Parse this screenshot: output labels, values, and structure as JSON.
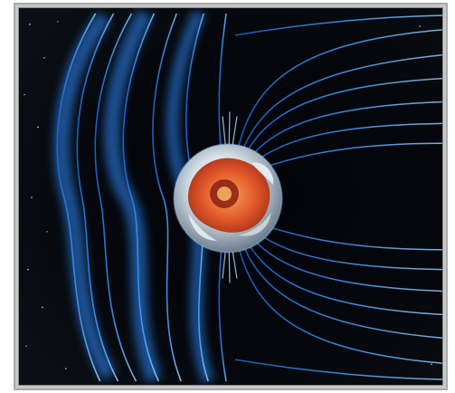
{
  "image": {
    "subject": "earth-magnetosphere",
    "colors": {
      "space": "#05070c",
      "field_line": "#2d8cff",
      "field_glow": "#8fd0ff",
      "core": "#e2572a",
      "cloud": "#e7edf2",
      "frame": "#a9a9a9"
    },
    "icons": [
      "earth-globe",
      "magnetic-field-lines",
      "starfield"
    ]
  }
}
